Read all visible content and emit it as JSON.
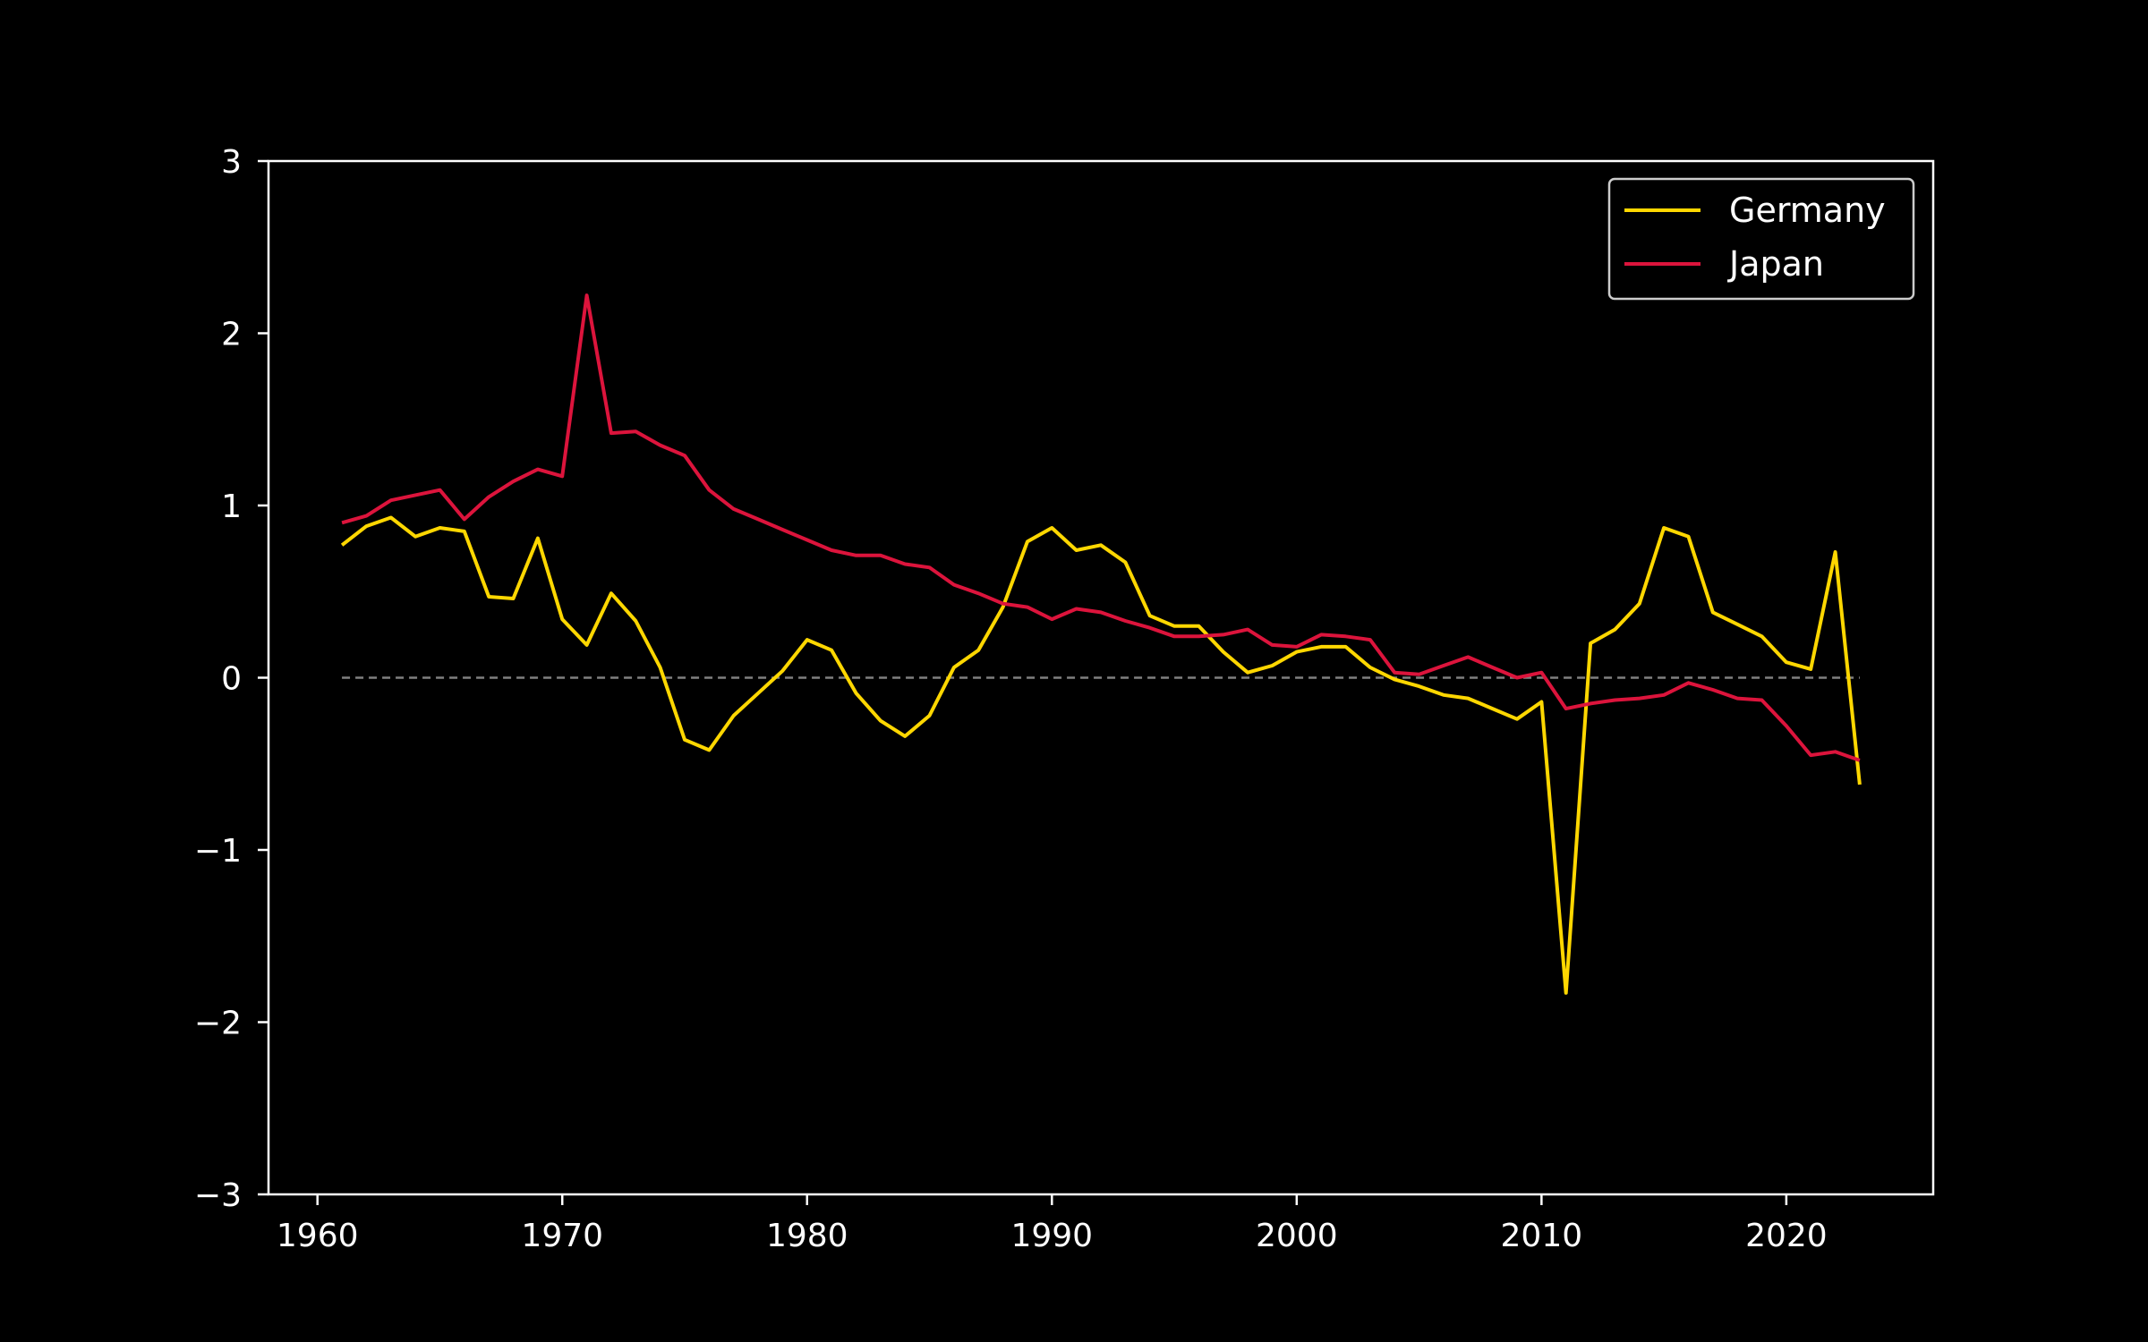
{
  "chart_data": {
    "type": "line",
    "title": "",
    "xlabel": "",
    "ylabel": "",
    "xlim": [
      1958,
      2026
    ],
    "ylim": [
      -3,
      3
    ],
    "xticks": [
      1960,
      1970,
      1980,
      1990,
      2000,
      2010,
      2020
    ],
    "yticks": [
      -3,
      -2,
      -1,
      0,
      1,
      2,
      3
    ],
    "ytick_labels": [
      "−3",
      "−2",
      "−1",
      "0",
      "1",
      "2",
      "3"
    ],
    "grid": false,
    "legend_position": "top-right",
    "background": "#000000",
    "axis_color": "#ffffff",
    "reference_line": {
      "y": 0,
      "style": "dashed",
      "color": "#808080"
    },
    "x": [
      1961,
      1962,
      1963,
      1964,
      1965,
      1966,
      1967,
      1968,
      1969,
      1970,
      1971,
      1972,
      1973,
      1974,
      1975,
      1976,
      1977,
      1978,
      1979,
      1980,
      1981,
      1982,
      1983,
      1984,
      1985,
      1986,
      1987,
      1988,
      1989,
      1990,
      1991,
      1992,
      1993,
      1994,
      1995,
      1996,
      1997,
      1998,
      1999,
      2000,
      2001,
      2002,
      2003,
      2004,
      2005,
      2006,
      2007,
      2008,
      2009,
      2010,
      2011,
      2012,
      2013,
      2014,
      2015,
      2016,
      2017,
      2018,
      2019,
      2020,
      2021,
      2022,
      2023
    ],
    "series": [
      {
        "name": "Germany",
        "color": "#FFD700",
        "values": [
          0.77,
          0.88,
          0.93,
          0.82,
          0.87,
          0.85,
          0.47,
          0.46,
          0.81,
          0.34,
          0.19,
          0.49,
          0.33,
          0.06,
          -0.36,
          -0.42,
          -0.22,
          -0.09,
          0.04,
          0.22,
          0.16,
          -0.09,
          -0.25,
          -0.34,
          -0.22,
          0.06,
          0.16,
          0.41,
          0.79,
          0.87,
          0.74,
          0.77,
          0.67,
          0.36,
          0.3,
          0.3,
          0.15,
          0.03,
          0.07,
          0.15,
          0.18,
          0.18,
          0.06,
          -0.01,
          -0.05,
          -0.1,
          -0.12,
          -0.18,
          -0.24,
          -0.14,
          -1.83,
          0.2,
          0.28,
          0.43,
          0.87,
          0.82,
          0.38,
          0.31,
          0.24,
          0.09,
          0.05,
          0.73,
          -0.62
        ]
      },
      {
        "name": "Japan",
        "color": "#DC143C",
        "values": [
          0.9,
          0.94,
          1.03,
          1.06,
          1.09,
          0.92,
          1.05,
          1.14,
          1.21,
          1.17,
          2.22,
          1.42,
          1.43,
          1.35,
          1.29,
          1.09,
          0.98,
          0.92,
          0.86,
          0.8,
          0.74,
          0.71,
          0.71,
          0.66,
          0.64,
          0.54,
          0.49,
          0.43,
          0.41,
          0.34,
          0.4,
          0.38,
          0.33,
          0.29,
          0.24,
          0.24,
          0.25,
          0.28,
          0.19,
          0.18,
          0.25,
          0.24,
          0.22,
          0.03,
          0.02,
          0.07,
          0.12,
          0.06,
          0.0,
          0.03,
          -0.18,
          -0.15,
          -0.13,
          -0.12,
          -0.1,
          -0.03,
          -0.07,
          -0.12,
          -0.13,
          -0.28,
          -0.45,
          -0.43,
          -0.48
        ]
      }
    ]
  }
}
